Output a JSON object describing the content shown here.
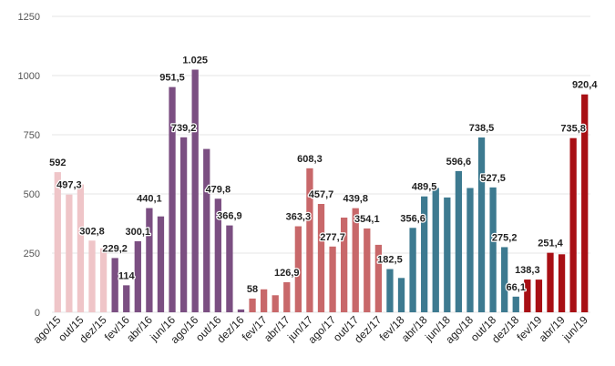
{
  "chart_data": {
    "type": "bar",
    "ylim": [
      0,
      1250
    ],
    "yticks": [
      0,
      250,
      500,
      750,
      1000,
      1250
    ],
    "ytick_labels": [
      "0",
      "250",
      "500",
      "750",
      "1000",
      "1250"
    ],
    "grid": true,
    "colors": {
      "group1": "#efc5c8",
      "group2": "#7b4f82",
      "group3": "#c8686a",
      "group4": "#3d7a90",
      "group5": "#a80f14"
    },
    "categories": [
      "ago/15",
      "set/15",
      "out/15",
      "nov/15",
      "dez/15",
      "jan/16",
      "fev/16",
      "mar/16",
      "abr/16",
      "mai/16",
      "jun/16",
      "jul/16",
      "ago/16",
      "set/16",
      "out/16",
      "nov/16",
      "dez/16",
      "jan/17",
      "fev/17",
      "mar/17",
      "abr/17",
      "mai/17",
      "jun/17",
      "jul/17",
      "ago/17",
      "set/17",
      "out/17",
      "nov/17",
      "dez/17",
      "jan/18",
      "fev/18",
      "mar/18",
      "abr/18",
      "mai/18",
      "jun/18",
      "jul/18",
      "ago/18",
      "set/18",
      "out/18",
      "nov/18",
      "dez/18",
      "jan/19",
      "fev/19",
      "mar/19",
      "abr/19",
      "mai/19",
      "jun/19"
    ],
    "values": [
      592,
      497.3,
      540,
      302.8,
      270,
      229.2,
      114,
      300.1,
      440.1,
      405,
      951.5,
      739.2,
      1025,
      690,
      479.8,
      366.9,
      12,
      58,
      97,
      72,
      126.9,
      363.3,
      608.3,
      457.7,
      277.7,
      400,
      439.8,
      354.1,
      285,
      182.5,
      145,
      356.6,
      489.5,
      525,
      485,
      596.6,
      525,
      738.5,
      527.5,
      275.2,
      66.1,
      138.3,
      138,
      251.4,
      245,
      735.8,
      920.4
    ],
    "groups": [
      1,
      1,
      1,
      1,
      1,
      2,
      2,
      2,
      2,
      2,
      2,
      2,
      2,
      2,
      2,
      2,
      2,
      3,
      3,
      3,
      3,
      3,
      3,
      3,
      3,
      3,
      3,
      3,
      3,
      4,
      4,
      4,
      4,
      4,
      4,
      4,
      4,
      4,
      4,
      4,
      4,
      5,
      5,
      5,
      5,
      5,
      5
    ],
    "data_labels": [
      "592",
      "497,3",
      "",
      "302,8",
      "",
      "229,2",
      "114",
      "300,1",
      "440,1",
      "",
      "951,5",
      "739,2",
      "1.025",
      "",
      "479,8",
      "366,9",
      "",
      "58",
      "",
      "",
      "126,9",
      "363,3",
      "608,3",
      "457,7",
      "277,7",
      "",
      "439,8",
      "354,1",
      "",
      "182,5",
      "",
      "356,6",
      "489,5",
      "",
      "",
      "596,6",
      "",
      "738,5",
      "527,5",
      "275,2",
      "66,1",
      "138,3",
      "",
      "251,4",
      "",
      "735,8",
      "920,4"
    ],
    "x_tick_labels": [
      "ago/15",
      "",
      "out/15",
      "",
      "dez/15",
      "",
      "fev/16",
      "",
      "abr/16",
      "",
      "jun/16",
      "",
      "ago/16",
      "",
      "out/16",
      "",
      "dez/16",
      "",
      "fev/17",
      "",
      "abr/17",
      "",
      "jun/17",
      "",
      "ago/17",
      "",
      "out/17",
      "",
      "dez/17",
      "",
      "fev/18",
      "",
      "abr/18",
      "",
      "jun/18",
      "",
      "ago/18",
      "",
      "out/18",
      "",
      "dez/18",
      "",
      "fev/19",
      "",
      "abr/19",
      "",
      "jun/19"
    ]
  }
}
